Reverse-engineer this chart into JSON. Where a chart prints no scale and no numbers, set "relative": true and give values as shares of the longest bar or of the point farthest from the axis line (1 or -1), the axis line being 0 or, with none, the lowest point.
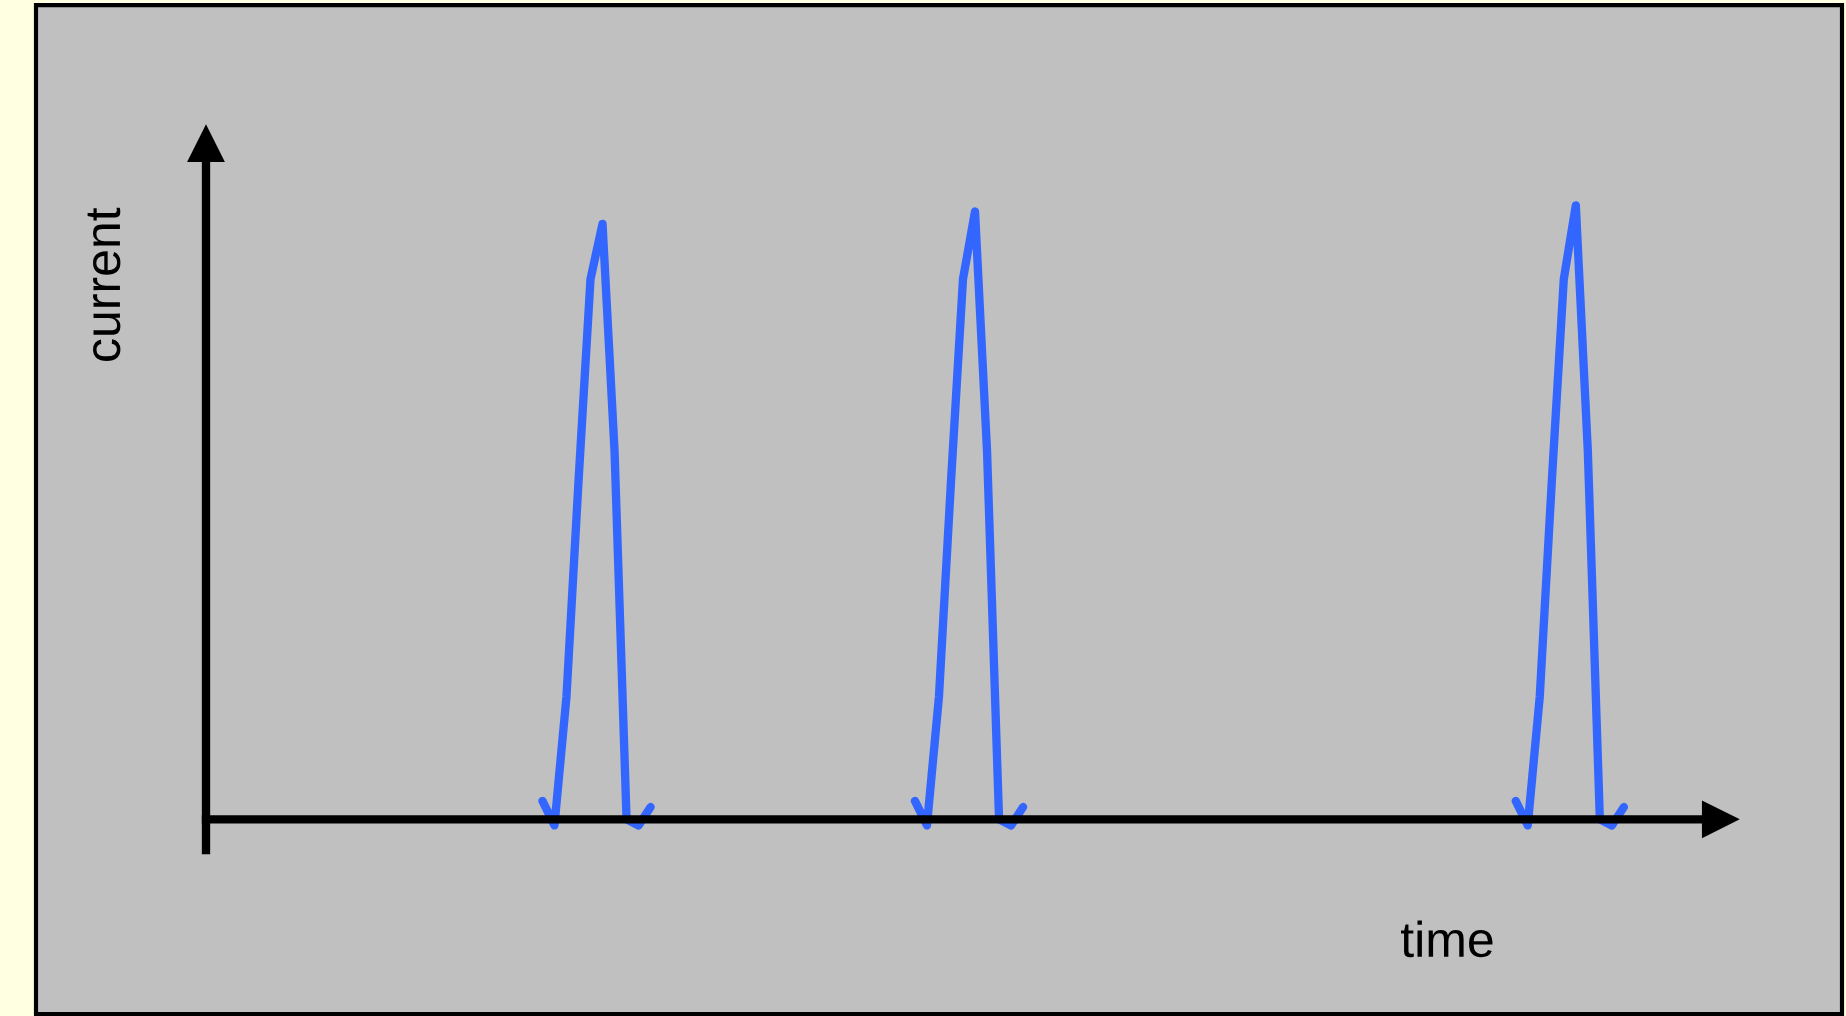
{
  "chart_data": {
    "type": "line",
    "xlabel": "time",
    "ylabel": "current",
    "relative": true,
    "categories": [
      null,
      null,
      null,
      null,
      null,
      null,
      null,
      null,
      null,
      null,
      null,
      null,
      null,
      null,
      null,
      null,
      null,
      null,
      null,
      null,
      null,
      null,
      null,
      null,
      null,
      null,
      null,
      null,
      null,
      null,
      null,
      null,
      null,
      null,
      null,
      null,
      null,
      null,
      null,
      null,
      null,
      null,
      null,
      null,
      null,
      null,
      null,
      null,
      null,
      null,
      null,
      null,
      null,
      null,
      null,
      null,
      null,
      null,
      null,
      null,
      null,
      null,
      null,
      null,
      null,
      null,
      null,
      null,
      null,
      null,
      null,
      null,
      null,
      null,
      null,
      null,
      null,
      null,
      null,
      null,
      null,
      null,
      null,
      null,
      null,
      null,
      null,
      null,
      null,
      null,
      null,
      null,
      null,
      null,
      null,
      null,
      null,
      null,
      null,
      null,
      null,
      null,
      null,
      null,
      null,
      null,
      null,
      null,
      null,
      null,
      null,
      null,
      null,
      null,
      null,
      null,
      null,
      null,
      null,
      null,
      null,
      null,
      null,
      null,
      null,
      null,
      null
    ],
    "series": [
      {
        "color": "#3366ff",
        "values": [
          null,
          null,
          null,
          null,
          null,
          null,
          null,
          null,
          null,
          null,
          null,
          null,
          null,
          null,
          null,
          null,
          null,
          null,
          null,
          null,
          null,
          null,
          null,
          null,
          null,
          null,
          null,
          null,
          0.03,
          -0.01,
          0.2,
          0.55,
          0.88,
          0.97,
          0.6,
          0.0,
          -0.01,
          0.02,
          null,
          null,
          null,
          null,
          null,
          null,
          null,
          null,
          null,
          null,
          null,
          null,
          null,
          null,
          null,
          null,
          null,
          null,
          null,
          null,
          null,
          null,
          null,
          null,
          null,
          null,
          null,
          null,
          null,
          null,
          null,
          null,
          null,
          null,
          null,
          null,
          null,
          null,
          null,
          null,
          null,
          null,
          null,
          null,
          null,
          null,
          null,
          null,
          null,
          null,
          null,
          null,
          null,
          null,
          null,
          null,
          null,
          null,
          null,
          null,
          null,
          null,
          null,
          null,
          null,
          null,
          null,
          null,
          null,
          null,
          null,
          null,
          null,
          null,
          null,
          null,
          null,
          null,
          null,
          null,
          null,
          null,
          null,
          null,
          null,
          null,
          null,
          null,
          null
        ]
      },
      {
        "color": "#3366ff",
        "values": [
          null,
          null,
          null,
          null,
          null,
          null,
          null,
          null,
          null,
          null,
          null,
          null,
          null,
          null,
          null,
          null,
          null,
          null,
          null,
          null,
          null,
          null,
          null,
          null,
          null,
          null,
          null,
          null,
          null,
          null,
          null,
          null,
          null,
          null,
          null,
          null,
          null,
          null,
          null,
          null,
          null,
          null,
          null,
          null,
          null,
          null,
          null,
          null,
          null,
          null,
          null,
          null,
          null,
          null,
          null,
          null,
          null,
          null,
          null,
          0.03,
          -0.01,
          0.2,
          0.55,
          0.88,
          0.99,
          0.6,
          0.0,
          -0.01,
          0.02,
          null,
          null,
          null,
          null,
          null,
          null,
          null,
          null,
          null,
          null,
          null,
          null,
          null,
          null,
          null,
          null,
          null,
          null,
          null,
          null,
          null,
          null,
          null,
          null,
          null,
          null,
          null,
          null,
          null,
          null,
          null,
          null,
          null,
          null,
          null,
          null,
          null,
          null,
          null,
          null,
          null,
          null,
          null,
          null,
          null,
          null,
          null,
          null,
          null,
          null,
          null,
          null,
          null,
          null,
          null,
          null,
          null,
          null
        ]
      },
      {
        "color": "#3366ff",
        "values": [
          null,
          null,
          null,
          null,
          null,
          null,
          null,
          null,
          null,
          null,
          null,
          null,
          null,
          null,
          null,
          null,
          null,
          null,
          null,
          null,
          null,
          null,
          null,
          null,
          null,
          null,
          null,
          null,
          null,
          null,
          null,
          null,
          null,
          null,
          null,
          null,
          null,
          null,
          null,
          null,
          null,
          null,
          null,
          null,
          null,
          null,
          null,
          null,
          null,
          null,
          null,
          null,
          null,
          null,
          null,
          null,
          null,
          null,
          null,
          null,
          null,
          null,
          null,
          null,
          null,
          null,
          null,
          null,
          null,
          null,
          null,
          null,
          null,
          null,
          null,
          null,
          null,
          null,
          null,
          null,
          null,
          null,
          null,
          null,
          null,
          null,
          null,
          null,
          null,
          null,
          null,
          null,
          null,
          null,
          null,
          null,
          null,
          null,
          null,
          null,
          null,
          null,
          null,
          null,
          null,
          null,
          null,
          null,
          null,
          0.03,
          -0.01,
          0.2,
          0.55,
          0.88,
          1.0,
          0.6,
          0.0,
          -0.01,
          0.02,
          null,
          null,
          null,
          null,
          null,
          null,
          null,
          null
        ]
      }
    ]
  }
}
